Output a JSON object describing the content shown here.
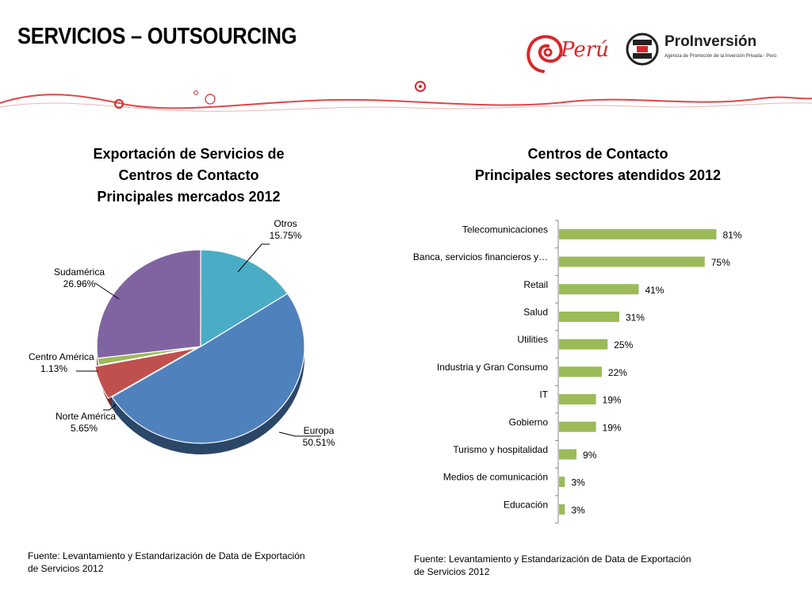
{
  "header": {
    "title": "SERVICIOS – OUTSOURCING",
    "logo_peru": "Perú",
    "logo_proinversion": "ProInversión",
    "logo_proinversion_sub": "Agencia de Promoción de la Inversión Privada - Perú",
    "accent_color": "#d9262c"
  },
  "left_chart": {
    "title_lines": [
      "Exportación de Servicios de",
      "Centros de Contacto",
      "Principales mercados 2012"
    ],
    "source_lines": [
      "Fuente: Levantamiento y Estandarización de Data de Exportación",
      "de Servicios 2012"
    ]
  },
  "right_chart": {
    "title_lines": [
      "Centros de Contacto",
      "Principales sectores atendidos 2012"
    ],
    "source_lines": [
      "Fuente: Levantamiento y Estandarización de Data de Exportación",
      "de Servicios 2012"
    ]
  },
  "chart_data": [
    {
      "type": "pie",
      "title": "Exportación de Servicios de Centros de Contacto Principales mercados 2012",
      "slices": [
        {
          "name": "Europa",
          "value": 50.51,
          "label": "50.51%",
          "color": "#4f81bd"
        },
        {
          "name": "Norte América",
          "value": 5.65,
          "label": "5.65%",
          "color": "#c0504d"
        },
        {
          "name": "Centro América",
          "value": 1.13,
          "label": "1.13%",
          "color": "#9bbb59"
        },
        {
          "name": "Sudamérica",
          "value": 26.96,
          "label": "26.96%",
          "color": "#8064a2"
        },
        {
          "name": "Otros",
          "value": 15.75,
          "label": "15.75%",
          "color": "#4bacc6"
        }
      ]
    },
    {
      "type": "bar",
      "orientation": "horizontal",
      "title": "Centros de Contacto Principales sectores atendidos 2012",
      "categories": [
        "Telecomunicaciones",
        "Banca, servicios financieros y…",
        "Retail",
        "Salud",
        "Utilities",
        "Industria y Gran Consumo",
        "IT",
        "Gobierno",
        "Turismo y hospitalidad",
        "Medios de comunicación",
        "Educación"
      ],
      "values": [
        81,
        75,
        41,
        31,
        25,
        22,
        19,
        19,
        9,
        3,
        3
      ],
      "labels": [
        "81%",
        "75%",
        "41%",
        "31%",
        "25%",
        "22%",
        "19%",
        "19%",
        "9%",
        "3%",
        "3%"
      ],
      "xlim": [
        0,
        100
      ],
      "bar_color": "#9bbb59",
      "grid": false
    }
  ]
}
